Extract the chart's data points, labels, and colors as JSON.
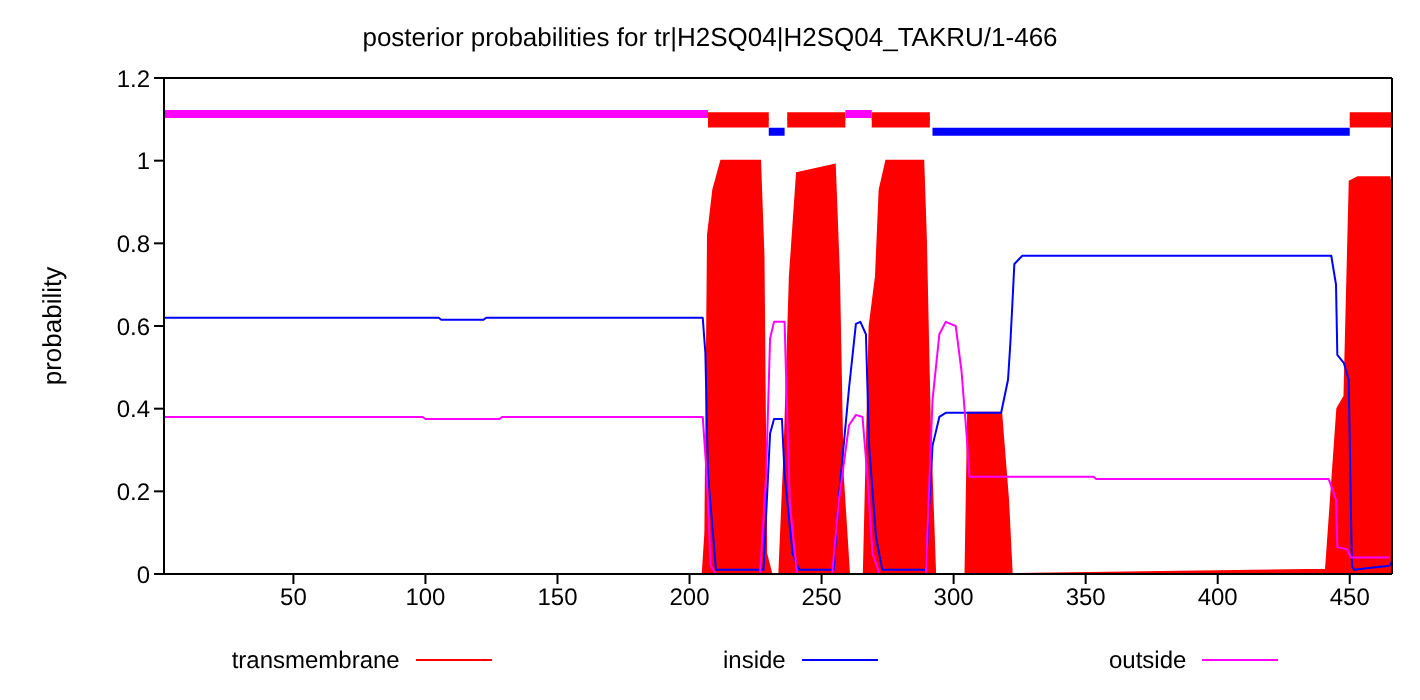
{
  "chart_data": {
    "type": "line",
    "title": "posterior probabilities for tr|H2SQ04|H2SQ04_TAKRU/1-466",
    "ylabel": "probability",
    "xlim": [
      1,
      466
    ],
    "xticks": [
      50,
      100,
      150,
      200,
      250,
      300,
      350,
      400,
      450
    ],
    "ylim": [
      0,
      1.2
    ],
    "yticks": [
      0,
      0.2,
      0.4,
      0.6,
      0.8,
      1,
      1.2
    ],
    "legend": "bottom",
    "series": [
      {
        "name": "transmembrane",
        "type": "area",
        "color": "#ff0000",
        "x": [
          1,
          205,
          206,
          207,
          209,
          212,
          226.7,
          228,
          229,
          231,
          234,
          236,
          238,
          240.7,
          255,
          256.6,
          258,
          260.4,
          266,
          268.2,
          270.6,
          272,
          274.5,
          288.5,
          289.5,
          291,
          293,
          304.5,
          305.5,
          318,
          320.6,
          322,
          441,
          445.3,
          448,
          450,
          453,
          465,
          466
        ],
        "values": [
          0,
          0,
          0.1,
          0.82,
          0.93,
          1,
          1,
          0.77,
          0.05,
          0,
          0,
          0.3,
          0.72,
          0.97,
          0.99,
          0.72,
          0.24,
          0,
          0,
          0.6,
          0.72,
          0.93,
          1,
          1,
          0.81,
          0.36,
          0,
          0,
          0.39,
          0.39,
          0.18,
          0,
          0.01,
          0.4,
          0.43,
          0.95,
          0.96,
          0.96,
          0.93
        ]
      },
      {
        "name": "inside",
        "color": "#0000ff",
        "x": [
          1,
          105,
          106,
          122,
          123,
          205,
          206,
          207,
          210,
          228,
          230.5,
          232,
          235,
          236,
          239,
          241.5,
          254.6,
          256.6,
          260.4,
          263,
          264.7,
          266.8,
          268,
          270.6,
          273,
          289.5,
          292,
          294.6,
          297,
          318,
          320.6,
          321.5,
          322.3,
          323,
          326,
          443,
          444.8,
          445.3,
          447.8,
          449.6,
          450.8,
          451.6,
          465,
          466
        ],
        "values": [
          0.62,
          0.62,
          0.615,
          0.615,
          0.62,
          0.62,
          0.535,
          0.24,
          0.01,
          0.01,
          0.34,
          0.375,
          0.375,
          0.24,
          0.05,
          0.01,
          0.01,
          0.19,
          0.45,
          0.605,
          0.61,
          0.58,
          0.31,
          0.09,
          0.01,
          0.01,
          0.31,
          0.38,
          0.39,
          0.39,
          0.47,
          0.56,
          0.66,
          0.75,
          0.77,
          0.77,
          0.7,
          0.53,
          0.51,
          0.47,
          0.02,
          0.01,
          0.02,
          0.03
        ]
      },
      {
        "name": "outside",
        "color": "#ff00ff",
        "x": [
          1,
          99,
          100,
          128,
          129,
          205,
          206.5,
          208,
          210,
          226.7,
          229,
          230.5,
          232,
          236,
          236.5,
          238,
          240.7,
          254,
          256.6,
          260.4,
          263,
          265.5,
          267.3,
          269.3,
          272,
          289.5,
          292,
          294.6,
          297,
          300.8,
          303,
          305,
          306,
          353,
          354,
          442,
          444.8,
          445.3,
          449,
          450.5,
          463,
          465
        ],
        "values": [
          0.38,
          0.38,
          0.375,
          0.375,
          0.38,
          0.38,
          0.24,
          0.02,
          0,
          0,
          0.24,
          0.57,
          0.61,
          0.61,
          0.49,
          0.17,
          0,
          0,
          0.18,
          0.36,
          0.385,
          0.38,
          0.24,
          0.05,
          0,
          0,
          0.42,
          0.58,
          0.61,
          0.6,
          0.49,
          0.33,
          0.235,
          0.235,
          0.23,
          0.23,
          0.18,
          0.065,
          0.06,
          0.04,
          0.04,
          0.04
        ]
      },
      {
        "color": "#ff00ff",
        "x": [
          1,
          207,
          208,
          259,
          269
        ],
        "values": [
          1.113,
          1.113,
          null,
          1.113,
          1.113
        ]
      },
      {
        "color": "#0000ff",
        "x": [
          230,
          236,
          237,
          292,
          450
        ],
        "values": [
          1.07,
          1.07,
          null,
          1.07,
          1.07
        ]
      },
      {
        "color": "#ff0000",
        "x": [
          207,
          230,
          230.5,
          237,
          259,
          259.5,
          269,
          291,
          291.5,
          450,
          466
        ],
        "values": [
          1.1,
          1.1,
          null,
          1.1,
          1.1,
          null,
          1.1,
          1.1,
          null,
          1.1,
          1.1
        ],
        "lower": [
          1.08,
          1.08,
          null,
          1.08,
          1.08,
          null,
          1.08,
          1.08,
          null,
          1.08,
          1.08
        ],
        "upper": [
          1.117,
          1.117,
          null,
          1.117,
          1.117,
          null,
          1.117,
          1.117,
          null,
          1.117,
          1.117
        ]
      }
    ]
  }
}
